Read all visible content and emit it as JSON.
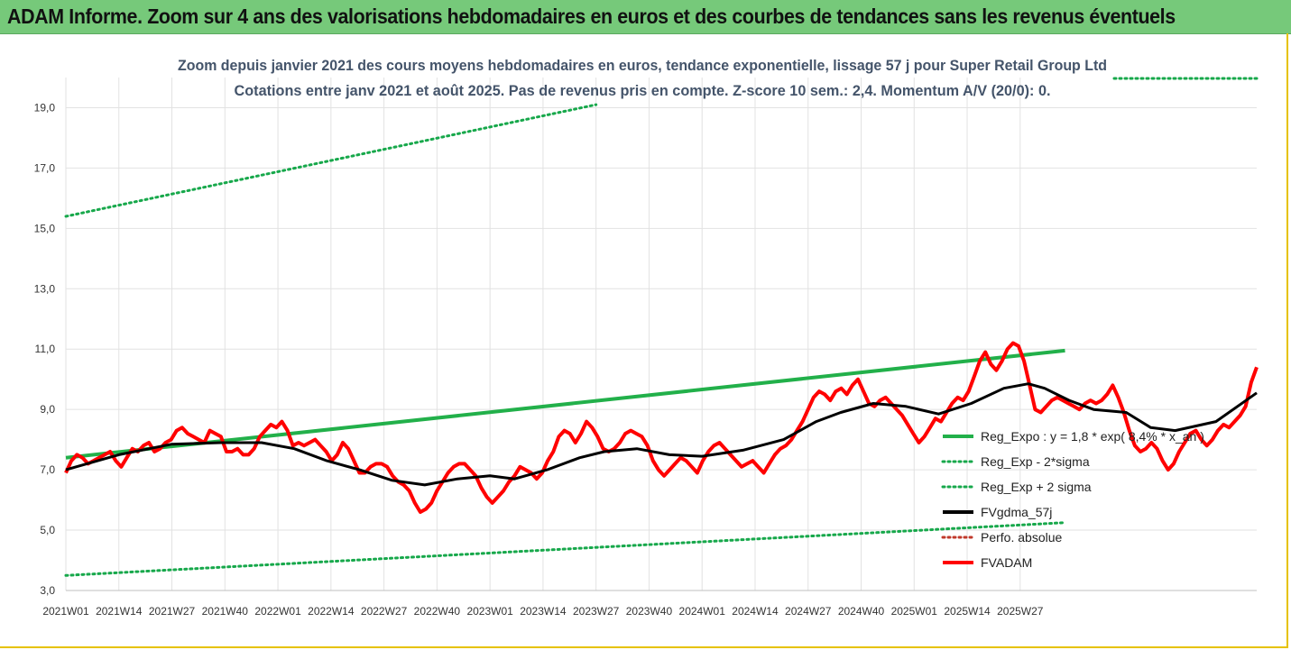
{
  "banner": {
    "title": "ADAM Informe. Zoom sur 4 ans des valorisations hebdomadaires en euros et des courbes de tendances sans les revenus éventuels"
  },
  "colors": {
    "banner_bg": "#76c97a",
    "trend": "#22b04a",
    "sigma": "#17a84b",
    "smooth": "#000000",
    "price": "#ff0000",
    "perfo": "#c0392b",
    "frame": "#e6c200"
  },
  "chart_data": {
    "type": "line",
    "title": "Zoom depuis janvier 2021 des cours moyens hebdomadaires en euros, tendance exponentielle, lissage 57 j pour Super Retail Group Ltd",
    "subtitle": "Cotations entre janv 2021 et août 2025.  Pas de revenus pris en compte. Z-score 10 sem.: 2,4. Momentum A/V (20/0): 0.",
    "xlabel": "",
    "ylabel": "",
    "ylim": [
      3.0,
      20.0
    ],
    "y_ticks": [
      "3,0",
      "5,0",
      "7,0",
      "9,0",
      "11,0",
      "13,0",
      "15,0",
      "17,0",
      "19,0"
    ],
    "x_ticks": [
      "2021W01",
      "2021W14",
      "2021W27",
      "2021W40",
      "2022W01",
      "2022W14",
      "2022W27",
      "2022W40",
      "2023W01",
      "2023W14",
      "2023W27",
      "2023W40",
      "2024W01",
      "2024W14",
      "2024W27",
      "2024W40",
      "2025W01",
      "2025W14",
      "2025W27"
    ],
    "grid": true,
    "legend_position": "bottom-right",
    "series": [
      {
        "name": "Reg_Expo : y = 1,8 * exp( 8,4% * x_an )",
        "style": "solid",
        "color": "#22b04a",
        "points": [
          [
            0,
            7.4
          ],
          [
            245,
            10.95
          ]
        ]
      },
      {
        "name": "Reg_Exp - 2*sigma",
        "style": "dotted",
        "color": "#17a84b",
        "points": [
          [
            0,
            3.5
          ],
          [
            245,
            5.25
          ]
        ]
      },
      {
        "name": "Reg_Exp + 2 sigma",
        "style": "dotted",
        "color": "#17a84b",
        "points": [
          [
            0,
            15.4
          ],
          [
            130,
            19.1
          ]
        ]
      },
      {
        "name": "FVgdma_57j",
        "style": "solid",
        "color": "#000000",
        "points": [
          [
            0,
            7.0
          ],
          [
            13,
            7.5
          ],
          [
            26,
            7.85
          ],
          [
            38,
            7.9
          ],
          [
            48,
            7.9
          ],
          [
            56,
            7.7
          ],
          [
            64,
            7.3
          ],
          [
            72,
            7.0
          ],
          [
            80,
            6.65
          ],
          [
            88,
            6.5
          ],
          [
            96,
            6.7
          ],
          [
            104,
            6.8
          ],
          [
            110,
            6.7
          ],
          [
            118,
            7.0
          ],
          [
            126,
            7.4
          ],
          [
            132,
            7.6
          ],
          [
            140,
            7.7
          ],
          [
            148,
            7.5
          ],
          [
            156,
            7.45
          ],
          [
            166,
            7.65
          ],
          [
            176,
            8.0
          ],
          [
            184,
            8.6
          ],
          [
            190,
            8.9
          ],
          [
            198,
            9.2
          ],
          [
            206,
            9.1
          ],
          [
            214,
            8.85
          ],
          [
            222,
            9.2
          ],
          [
            230,
            9.7
          ],
          [
            236,
            9.85
          ],
          [
            240,
            9.7
          ],
          [
            246,
            9.3
          ],
          [
            252,
            9.0
          ],
          [
            260,
            8.9
          ],
          [
            266,
            8.4
          ],
          [
            272,
            8.3
          ],
          [
            282,
            8.6
          ],
          [
            292,
            9.55
          ]
        ]
      }
    ],
    "legend_extra": {
      "name": "Perfo. absolue",
      "color": "#c0392b",
      "style": "dotted"
    },
    "price_series": {
      "name": "FVADAM",
      "color": "#ff0000",
      "weekly_values": [
        6.9,
        7.3,
        7.5,
        7.4,
        7.2,
        7.3,
        7.4,
        7.5,
        7.6,
        7.3,
        7.1,
        7.4,
        7.7,
        7.6,
        7.8,
        7.9,
        7.6,
        7.7,
        7.9,
        8.0,
        8.3,
        8.4,
        8.2,
        8.1,
        8.0,
        7.9,
        8.3,
        8.2,
        8.1,
        7.6,
        7.6,
        7.7,
        7.5,
        7.5,
        7.7,
        8.1,
        8.3,
        8.5,
        8.4,
        8.6,
        8.3,
        7.8,
        7.9,
        7.8,
        7.9,
        8.0,
        7.8,
        7.6,
        7.3,
        7.5,
        7.9,
        7.7,
        7.3,
        6.9,
        6.9,
        7.1,
        7.2,
        7.2,
        7.1,
        6.8,
        6.6,
        6.5,
        6.3,
        5.9,
        5.6,
        5.7,
        5.9,
        6.3,
        6.6,
        6.9,
        7.1,
        7.2,
        7.2,
        7.0,
        6.8,
        6.4,
        6.1,
        5.9,
        6.1,
        6.3,
        6.6,
        6.8,
        7.1,
        7.0,
        6.9,
        6.7,
        6.9,
        7.3,
        7.6,
        8.1,
        8.3,
        8.2,
        7.9,
        8.2,
        8.6,
        8.4,
        8.1,
        7.7,
        7.6,
        7.7,
        7.9,
        8.2,
        8.3,
        8.2,
        8.1,
        7.8,
        7.3,
        7.0,
        6.8,
        7.0,
        7.2,
        7.4,
        7.3,
        7.1,
        6.9,
        7.3,
        7.6,
        7.8,
        7.9,
        7.7,
        7.5,
        7.3,
        7.1,
        7.2,
        7.3,
        7.1,
        6.9,
        7.2,
        7.5,
        7.7,
        7.8,
        8.0,
        8.3,
        8.6,
        9.0,
        9.4,
        9.6,
        9.5,
        9.3,
        9.6,
        9.7,
        9.5,
        9.8,
        10.0,
        9.6,
        9.2,
        9.1,
        9.3,
        9.4,
        9.2,
        9.0,
        8.8,
        8.5,
        8.2,
        7.9,
        8.1,
        8.4,
        8.7,
        8.6,
        8.9,
        9.2,
        9.4,
        9.3,
        9.6,
        10.1,
        10.6,
        10.9,
        10.5,
        10.3,
        10.6,
        11.0,
        11.2,
        11.1,
        10.6,
        9.8,
        9.0,
        8.9,
        9.1,
        9.3,
        9.4,
        9.3,
        9.2,
        9.1,
        9.0,
        9.2,
        9.3,
        9.2,
        9.3,
        9.5,
        9.8,
        9.4,
        8.9,
        8.3,
        7.8,
        7.6,
        7.7,
        7.9,
        7.7,
        7.3,
        7.0,
        7.2,
        7.6,
        7.9,
        8.2,
        8.3,
        8.0,
        7.8,
        8.0,
        8.3,
        8.5,
        8.4,
        8.6,
        8.8,
        9.1,
        9.9,
        10.4
      ]
    }
  },
  "legend": [
    {
      "label": "Reg_Expo : y = 1,8 * exp( 8,4% * x_an )",
      "style": "solid",
      "color": "#22b04a"
    },
    {
      "label": "Reg_Exp - 2*sigma",
      "style": "dotted",
      "color": "#17a84b"
    },
    {
      "label": "Reg_Exp + 2 sigma",
      "style": "dotted",
      "color": "#17a84b"
    },
    {
      "label": "FVgdma_57j",
      "style": "solid",
      "color": "#000000"
    },
    {
      "label": "Perfo. absolue",
      "style": "dotted",
      "color": "#c0392b"
    },
    {
      "label": "FVADAM",
      "style": "solid",
      "color": "#ff0000"
    }
  ]
}
